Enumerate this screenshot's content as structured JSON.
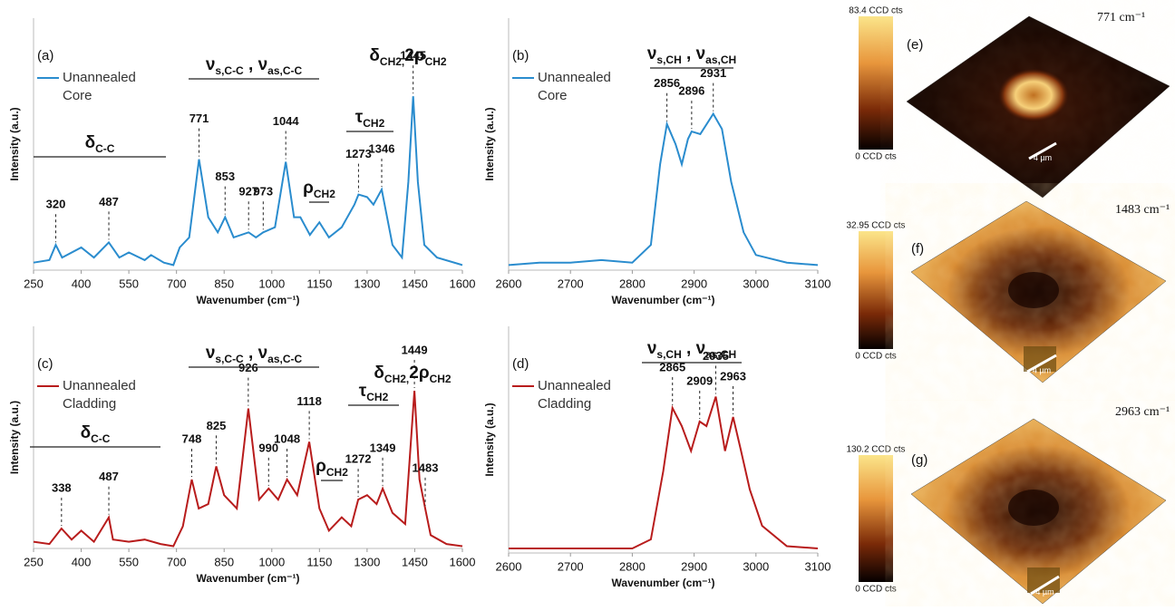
{
  "chart_data": [
    {
      "type": "line",
      "label": "(a)",
      "x_label": "Wavenumber (cm⁻¹)",
      "y_label": "Intensity (a.u.)",
      "x": [
        250,
        300,
        320,
        340,
        400,
        440,
        487,
        520,
        550,
        600,
        620,
        660,
        690,
        710,
        740,
        771,
        800,
        830,
        853,
        880,
        927,
        950,
        973,
        1010,
        1044,
        1070,
        1090,
        1120,
        1150,
        1180,
        1220,
        1260,
        1273,
        1300,
        1320,
        1346,
        1380,
        1410,
        1430,
        1445,
        1460,
        1480,
        1520,
        1600
      ],
      "series": [
        {
          "name": "Unannealed Core",
          "color": "#2a8cce",
          "values": [
            3,
            4,
            10,
            5,
            9,
            5,
            11,
            5,
            7,
            4,
            6,
            3,
            2,
            9,
            13,
            44,
            21,
            15,
            21,
            13,
            15,
            13,
            15,
            17,
            43,
            21,
            21,
            14,
            19,
            13,
            17,
            26,
            30,
            29,
            26,
            32,
            10,
            5,
            35,
            69,
            35,
            10,
            5,
            2
          ]
        }
      ],
      "xlim": [
        250,
        1600
      ],
      "xticks": [
        250,
        400,
        550,
        700,
        850,
        1000,
        1150,
        1300,
        1450,
        1600
      ],
      "ylim": [
        0,
        100
      ],
      "peaks": [
        320,
        487,
        771,
        853,
        927,
        973,
        1044,
        1273,
        1346,
        1445
      ],
      "groups": [
        {
          "parts": [
            {
              "text": "δ"
            },
            {
              "text": "C-C",
              "sub": true
            }
          ]
        },
        {
          "parts": [
            {
              "text": "ν"
            },
            {
              "text": "s,C-C",
              "sub": true
            },
            {
              "text": " , "
            },
            {
              "text": "ν"
            },
            {
              "text": "as,C-C",
              "sub": true
            }
          ]
        },
        {
          "parts": [
            {
              "text": "ρ"
            },
            {
              "text": "CH2",
              "sub": true
            }
          ]
        },
        {
          "parts": [
            {
              "text": "τ"
            },
            {
              "text": "CH2",
              "sub": true
            }
          ]
        },
        {
          "parts": [
            {
              "text": "δ"
            },
            {
              "text": "CH2,",
              "sub": true
            },
            {
              "text": "2ρ"
            },
            {
              "text": "CH2",
              "sub": true
            }
          ]
        }
      ]
    },
    {
      "type": "line",
      "label": "(b)",
      "x_label": "Wavenumber (cm⁻¹)",
      "y_label": "Intensity (a.u.)",
      "x": [
        2600,
        2650,
        2700,
        2750,
        2800,
        2830,
        2845,
        2856,
        2870,
        2880,
        2890,
        2896,
        2910,
        2931,
        2945,
        2960,
        2980,
        3000,
        3050,
        3100
      ],
      "series": [
        {
          "name": "Unannealed Core",
          "color": "#2a8cce",
          "values": [
            2,
            3,
            3,
            4,
            3,
            10,
            42,
            58,
            50,
            42,
            52,
            55,
            54,
            62,
            56,
            35,
            15,
            6,
            3,
            2
          ]
        }
      ],
      "xlim": [
        2600,
        3100
      ],
      "xticks": [
        2600,
        2700,
        2800,
        2900,
        3000,
        3100
      ],
      "ylim": [
        0,
        100
      ],
      "peaks": [
        2856,
        2896,
        2931
      ],
      "groups": [
        {
          "parts": [
            {
              "text": "ν"
            },
            {
              "text": "s,CH",
              "sub": true
            },
            {
              "text": " , "
            },
            {
              "text": "ν"
            },
            {
              "text": "as,CH",
              "sub": true
            }
          ]
        }
      ]
    },
    {
      "type": "line",
      "label": "(c)",
      "x_label": "Wavenumber (cm⁻¹)",
      "y_label": "Intensity (a.u.)",
      "x": [
        250,
        300,
        338,
        370,
        400,
        440,
        487,
        500,
        550,
        600,
        650,
        690,
        720,
        748,
        770,
        800,
        825,
        850,
        890,
        926,
        960,
        990,
        1020,
        1048,
        1080,
        1118,
        1150,
        1180,
        1220,
        1250,
        1272,
        1300,
        1330,
        1349,
        1380,
        1420,
        1449,
        1465,
        1483,
        1500,
        1550,
        1600
      ],
      "series": [
        {
          "name": "Unannealed Cladding",
          "color": "#b81c1c",
          "values": [
            3,
            2,
            9,
            4,
            8,
            3,
            14,
            4,
            3,
            4,
            2,
            1,
            10,
            31,
            18,
            20,
            37,
            24,
            18,
            63,
            22,
            27,
            22,
            31,
            24,
            48,
            18,
            8,
            14,
            10,
            22,
            24,
            20,
            27,
            16,
            11,
            71,
            31,
            18,
            6,
            2,
            1
          ]
        }
      ],
      "xlim": [
        250,
        1600
      ],
      "xticks": [
        250,
        400,
        550,
        700,
        850,
        1000,
        1150,
        1300,
        1450,
        1600
      ],
      "ylim": [
        0,
        100
      ],
      "peaks": [
        338,
        487,
        748,
        825,
        926,
        990,
        1048,
        1118,
        1272,
        1349,
        1449,
        1483
      ],
      "groups": [
        {
          "parts": [
            {
              "text": "δ"
            },
            {
              "text": "C-C",
              "sub": true
            }
          ]
        },
        {
          "parts": [
            {
              "text": "ν"
            },
            {
              "text": "s,C-C",
              "sub": true
            },
            {
              "text": " , "
            },
            {
              "text": "ν"
            },
            {
              "text": "as,C-C",
              "sub": true
            }
          ]
        },
        {
          "parts": [
            {
              "text": "ρ"
            },
            {
              "text": "CH2",
              "sub": true
            }
          ]
        },
        {
          "parts": [
            {
              "text": "τ"
            },
            {
              "text": "CH2",
              "sub": true
            }
          ]
        },
        {
          "parts": [
            {
              "text": "δ"
            },
            {
              "text": "CH2,",
              "sub": true
            },
            {
              "text": "2ρ"
            },
            {
              "text": "CH2",
              "sub": true
            }
          ]
        }
      ]
    },
    {
      "type": "line",
      "label": "(d)",
      "x_label": "Wavenumber (cm⁻¹)",
      "y_label": "Intensity (a.u.)",
      "x": [
        2600,
        2700,
        2750,
        2800,
        2830,
        2850,
        2865,
        2880,
        2895,
        2909,
        2920,
        2935,
        2950,
        2963,
        2975,
        2990,
        3010,
        3050,
        3100
      ],
      "series": [
        {
          "name": "Unannealed Cladding",
          "color": "#b81c1c",
          "values": [
            2,
            2,
            2,
            2,
            6,
            36,
            64,
            56,
            45,
            58,
            56,
            69,
            45,
            60,
            46,
            28,
            12,
            3,
            2
          ]
        }
      ],
      "xlim": [
        2600,
        3100
      ],
      "xticks": [
        2600,
        2700,
        2800,
        2900,
        3000,
        3100
      ],
      "ylim": [
        0,
        100
      ],
      "peaks": [
        2865,
        2909,
        2935,
        2963
      ],
      "groups": [
        {
          "parts": [
            {
              "text": "ν"
            },
            {
              "text": "s,CH",
              "sub": true
            },
            {
              "text": " , "
            },
            {
              "text": "ν"
            },
            {
              "text": "as,CH",
              "sub": true
            }
          ]
        }
      ]
    }
  ],
  "maps": [
    {
      "label": "(e)",
      "band": "771 cm⁻¹",
      "colorbar": [
        "83.4 CCD cts",
        "0 CCD cts"
      ],
      "scale": "4 µm"
    },
    {
      "label": "(f)",
      "band": "1483 cm⁻¹",
      "colorbar": [
        "32.95 CCD cts",
        "0 CCD cts"
      ],
      "scale": "4 µm"
    },
    {
      "label": "(g)",
      "band": "2963 cm⁻¹",
      "colorbar": [
        "130.2 CCD cts",
        "0 CCD cts"
      ],
      "scale": "4 µm"
    }
  ]
}
